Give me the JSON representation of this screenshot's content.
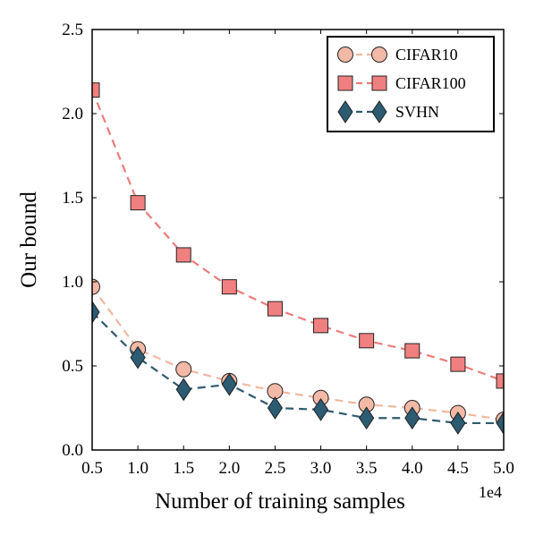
{
  "chart_data": {
    "type": "line",
    "xlabel": "Number of training samples",
    "ylabel": "Our bound",
    "x_exponent_label": "1e4",
    "x": [
      0.5,
      1.0,
      1.5,
      2.0,
      2.5,
      3.0,
      3.5,
      4.0,
      4.5,
      5.0
    ],
    "xlim": [
      0.5,
      5.0
    ],
    "ylim": [
      0.0,
      2.5
    ],
    "x_ticks": [
      "0.5",
      "1.0",
      "1.5",
      "2.0",
      "2.5",
      "3.0",
      "3.5",
      "4.0",
      "4.5",
      "5.0"
    ],
    "y_ticks": [
      "0.0",
      "0.5",
      "1.0",
      "1.5",
      "2.0",
      "2.5"
    ],
    "grid": false,
    "legend_position": "top-right",
    "series": [
      {
        "name": "CIFAR10",
        "marker": "circle",
        "line_color": "#f0b8a0",
        "marker_color": "#f2b9a6",
        "values": [
          0.97,
          0.6,
          0.48,
          0.41,
          0.35,
          0.31,
          0.27,
          0.25,
          0.22,
          0.18
        ]
      },
      {
        "name": "CIFAR100",
        "marker": "square",
        "line_color": "#ee7b7b",
        "marker_color": "#f08080",
        "values": [
          2.14,
          1.47,
          1.16,
          0.97,
          0.84,
          0.74,
          0.65,
          0.59,
          0.51,
          0.41
        ]
      },
      {
        "name": "SVHN",
        "marker": "diamond",
        "line_color": "#2f5a6e",
        "marker_color": "#2b5c72",
        "values": [
          0.82,
          0.55,
          0.36,
          0.39,
          0.25,
          0.24,
          0.19,
          0.19,
          0.16,
          0.16
        ]
      }
    ]
  }
}
